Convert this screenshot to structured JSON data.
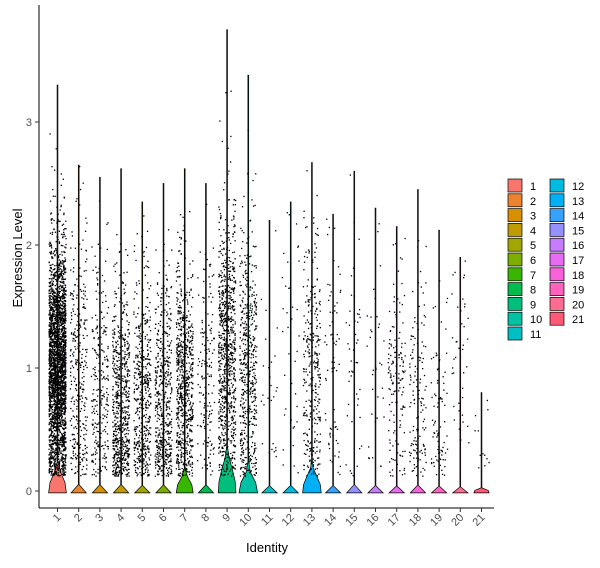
{
  "chart_data": {
    "type": "violin",
    "xlabel": "Identity",
    "ylabel": "Expression Level",
    "ylim": [
      -0.15,
      3.85
    ],
    "y_ticks": [
      0,
      1,
      2,
      3
    ],
    "grid": false,
    "legend_position": "right",
    "categories": [
      "1",
      "2",
      "3",
      "4",
      "5",
      "6",
      "7",
      "8",
      "9",
      "10",
      "11",
      "12",
      "13",
      "14",
      "15",
      "16",
      "17",
      "18",
      "19",
      "20",
      "21"
    ],
    "colors": [
      "#F8766D",
      "#EA8331",
      "#D89000",
      "#C09B00",
      "#A3A500",
      "#7CAE00",
      "#39B600",
      "#00BB4E",
      "#00BF7D",
      "#00C1A3",
      "#00BFC4",
      "#00BAE0",
      "#00B0F6",
      "#35A2FF",
      "#9590FF",
      "#C77CFF",
      "#E76BF3",
      "#FA62DB",
      "#FF62BC",
      "#FF6C91",
      "#FF5A75"
    ],
    "max_values": [
      3.3,
      2.65,
      2.55,
      2.62,
      2.35,
      2.5,
      2.62,
      2.5,
      3.75,
      3.38,
      2.2,
      2.35,
      2.67,
      2.25,
      2.6,
      2.3,
      2.15,
      2.45,
      2.12,
      1.9,
      0.8
    ],
    "violin_peak_height": [
      0.23,
      0.02,
      0.02,
      0.02,
      0.02,
      0.02,
      0.17,
      0.02,
      0.35,
      0.2,
      0.02,
      0.02,
      0.22,
      0.02,
      0.02,
      0.02,
      0.02,
      0.02,
      0.02,
      0.02,
      0.02
    ],
    "violin_peak_width": [
      0.42,
      0.36,
      0.36,
      0.36,
      0.36,
      0.36,
      0.4,
      0.36,
      0.42,
      0.44,
      0.36,
      0.36,
      0.44,
      0.36,
      0.36,
      0.36,
      0.36,
      0.36,
      0.36,
      0.36,
      0.36
    ],
    "point_counts": [
      2800,
      320,
      260,
      650,
      480,
      520,
      720,
      160,
      850,
      520,
      28,
      45,
      320,
      70,
      45,
      35,
      150,
      140,
      85,
      40,
      12
    ],
    "point_center": [
      1.0,
      0.95,
      0.9,
      0.65,
      0.7,
      0.72,
      0.85,
      0.9,
      1.1,
      0.95,
      0.9,
      1.3,
      0.85,
      1.0,
      1.0,
      1.0,
      0.9,
      0.75,
      0.6,
      1.0,
      0.5
    ],
    "point_spread": [
      0.5,
      0.6,
      0.6,
      0.5,
      0.5,
      0.5,
      0.5,
      0.6,
      0.6,
      0.6,
      0.5,
      0.6,
      0.55,
      0.6,
      0.6,
      0.6,
      0.5,
      0.5,
      0.5,
      0.5,
      0.3
    ]
  }
}
